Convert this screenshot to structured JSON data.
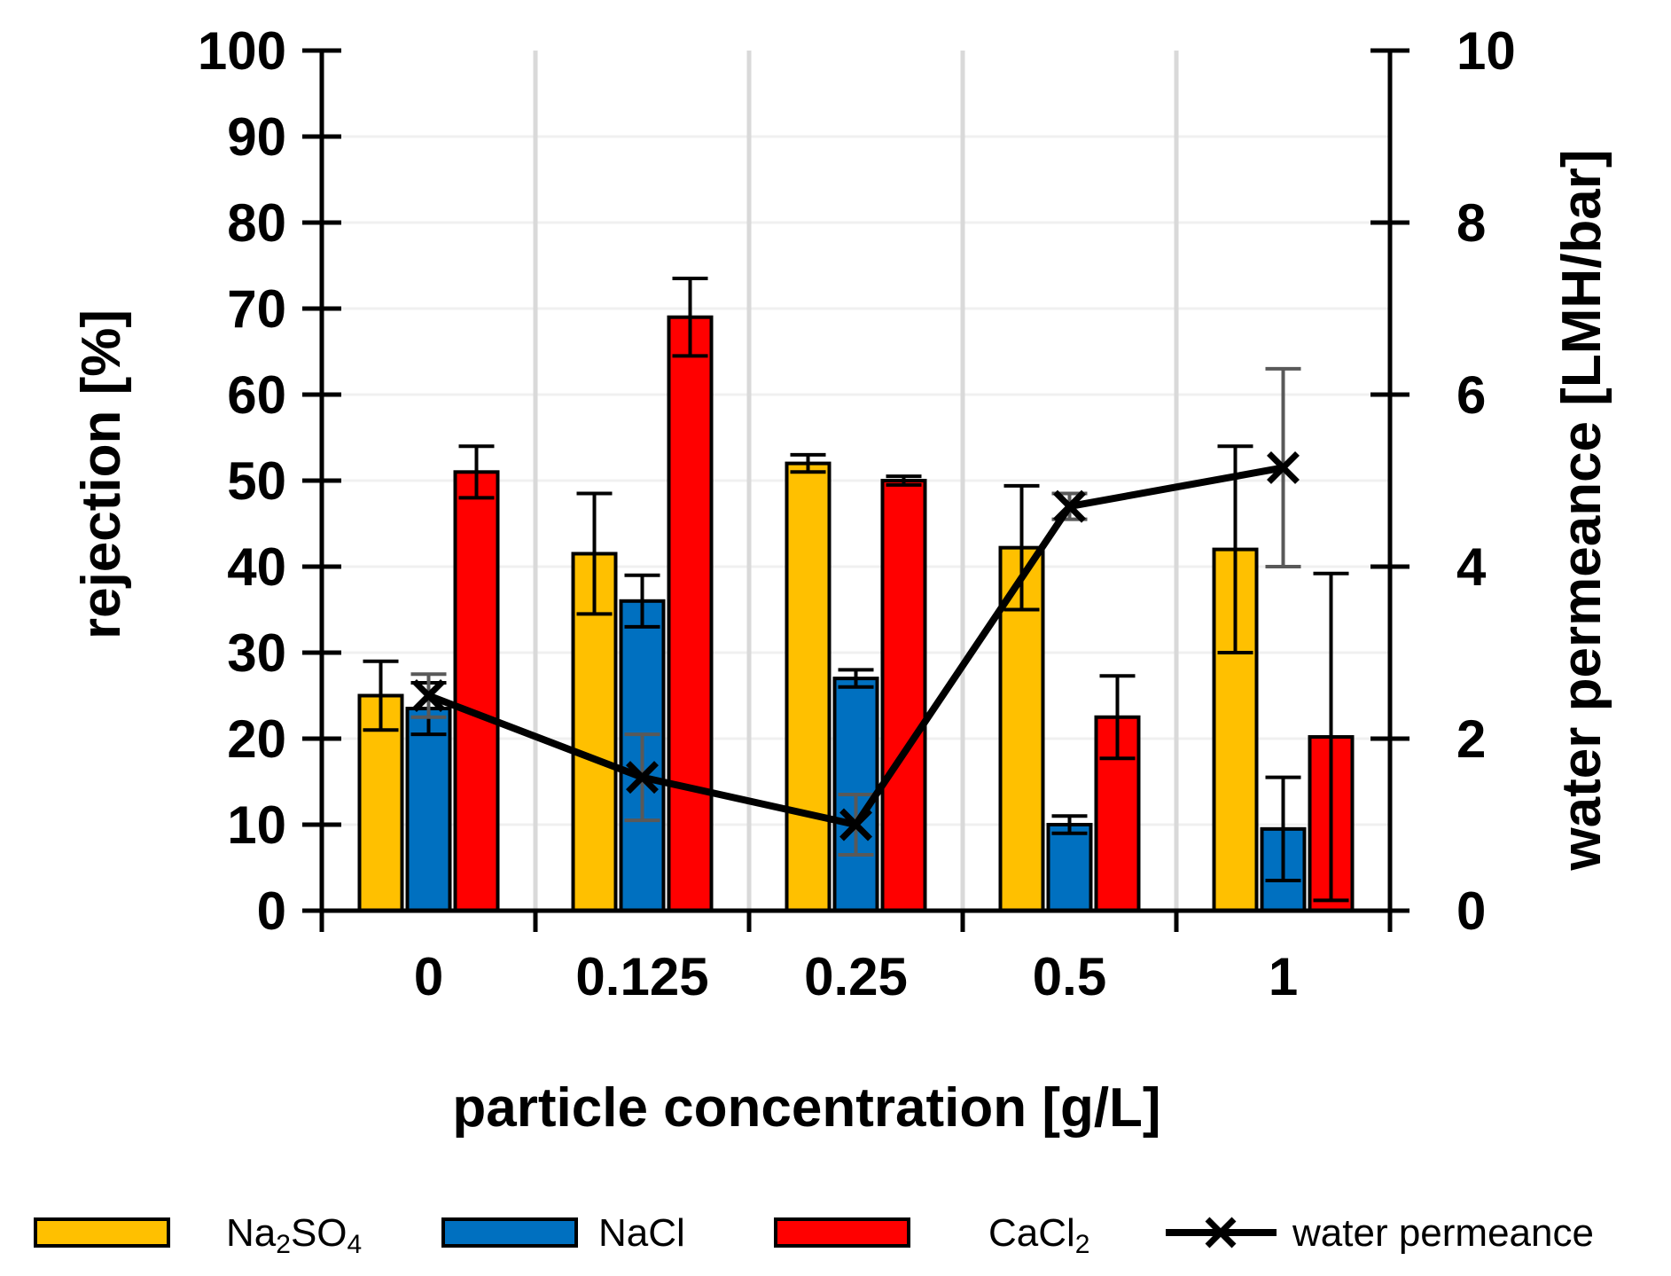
{
  "chart_data": {
    "type": "bar",
    "categories": [
      "0",
      "0.125",
      "0.25",
      "0.5",
      "1"
    ],
    "xlabel": "particle concentration [g/L]",
    "ylabel": "rejection [%]",
    "ylabel_right": "water permeance [LMH/bar]",
    "ylim": [
      0,
      100
    ],
    "yticks": [
      "0",
      "10",
      "20",
      "30",
      "40",
      "50",
      "60",
      "70",
      "80",
      "90",
      "100"
    ],
    "ylim_right": [
      0,
      10
    ],
    "yticks_right": [
      "0",
      "2",
      "4",
      "6",
      "8",
      "10"
    ],
    "grid": "vertical",
    "legend_position": "bottom",
    "series": [
      {
        "name": "Na2SO4",
        "label_main": "Na",
        "label_sub1": "2",
        "label_mid": "SO",
        "label_sub2": "4",
        "color": "#FFC000",
        "values": [
          25,
          41.5,
          52,
          42.2,
          42
        ],
        "errors": [
          4,
          7,
          1,
          7.2,
          12
        ]
      },
      {
        "name": "NaCl",
        "label_main": "NaCl",
        "color": "#0070C0",
        "values": [
          23.5,
          36,
          27,
          10,
          9.5
        ],
        "errors": [
          3,
          3,
          1,
          1,
          6
        ]
      },
      {
        "name": "CaCl2",
        "label_main": "CaCl",
        "label_sub1": "2",
        "color": "#FF0000",
        "values": [
          51,
          69,
          50,
          22.5,
          20.2
        ],
        "errors": [
          3,
          4.5,
          0.5,
          4.8,
          19
        ]
      }
    ],
    "line_series": {
      "name": "water permeance",
      "axis": "right",
      "color": "#000000",
      "marker": "x",
      "values": [
        2.5,
        1.55,
        1.0,
        4.7,
        5.15
      ],
      "errors": [
        0.25,
        0.5,
        0.35,
        0.15,
        1.15
      ]
    }
  }
}
